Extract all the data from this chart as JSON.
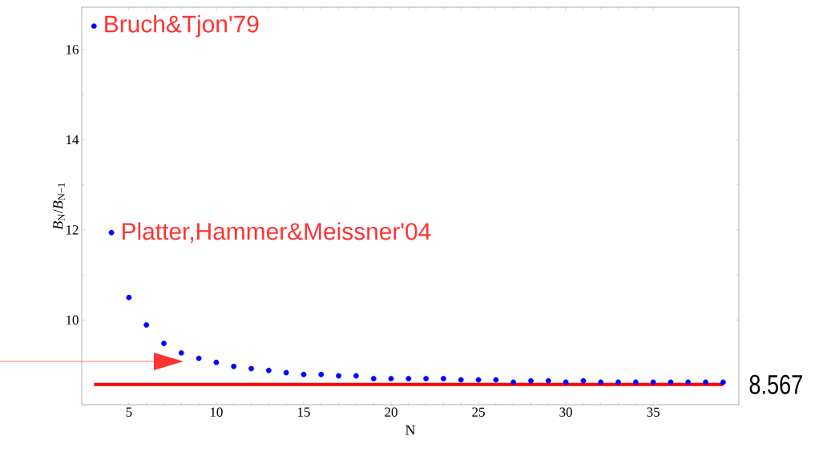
{
  "chart_data": {
    "type": "scatter",
    "xlabel": "N",
    "ylabel": "*B*$_{N}$/*B*$_{N−1}$",
    "x": [
      3,
      4,
      5,
      6,
      7,
      8,
      9,
      10,
      11,
      12,
      13,
      14,
      15,
      16,
      17,
      18,
      19,
      20,
      21,
      22,
      23,
      24,
      25,
      26,
      27,
      28,
      29,
      30,
      31,
      32,
      33,
      34,
      35,
      36,
      37,
      38,
      39
    ],
    "series": [
      {
        "color": "#0000ff",
        "values": [
          16.52,
          11.94,
          10.5,
          9.89,
          9.48,
          9.27,
          9.15,
          9.06,
          8.97,
          8.92,
          8.88,
          8.83,
          8.79,
          8.79,
          8.76,
          8.76,
          8.7,
          8.7,
          8.7,
          8.7,
          8.7,
          8.67,
          8.67,
          8.67,
          8.62,
          8.65,
          8.65,
          8.62,
          8.65,
          8.62,
          8.62,
          8.62,
          8.62,
          8.62,
          8.62,
          8.62,
          8.62
        ]
      }
    ],
    "grid": false,
    "xlim": [
      2.3,
      39.9
    ],
    "ylim": [
      8.12,
      16.94
    ],
    "xticks": [
      5,
      10,
      15,
      20,
      25,
      30,
      35
    ],
    "yticks": [
      10,
      12,
      14,
      16
    ],
    "ref_lines": [
      {
        "axis": "y",
        "value": 8.567,
        "label": "8.567",
        "color": "#ff0000"
      }
    ],
    "annotations": [
      {
        "text": "Bruch&Tjon'79",
        "x": 3,
        "y": 16.52
      },
      {
        "text": "Platter,Hammer&Meissner'04",
        "x": 4,
        "y": 11.94
      }
    ]
  }
}
